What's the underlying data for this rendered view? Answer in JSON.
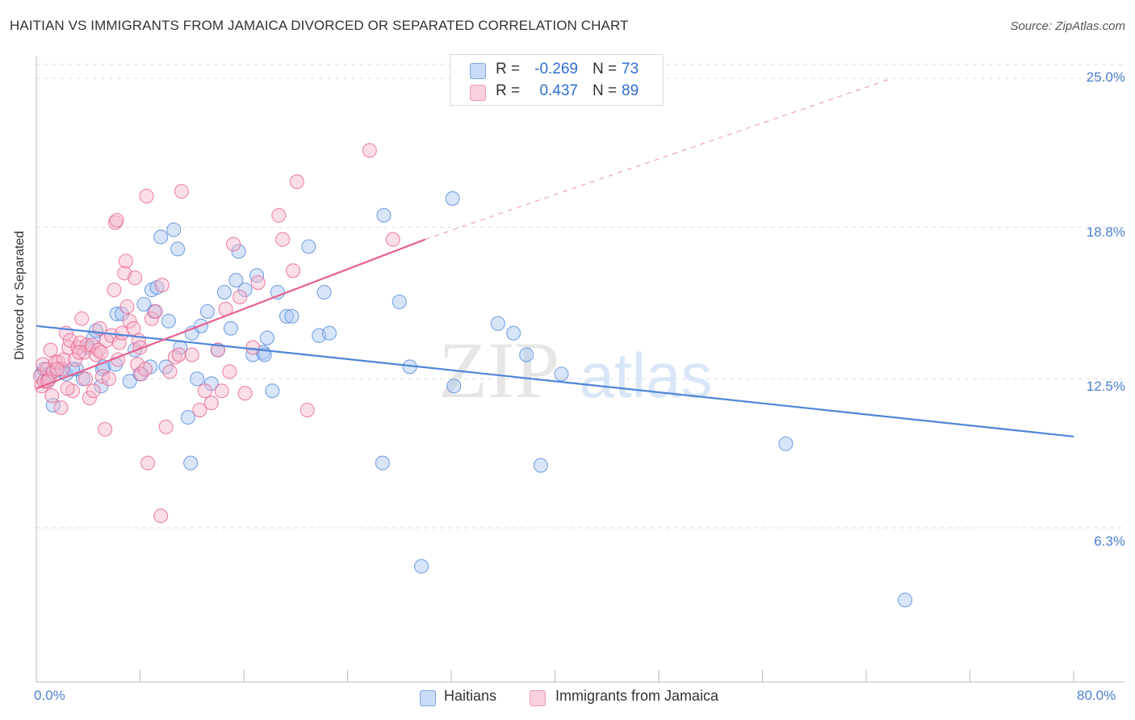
{
  "header": {
    "title": "HAITIAN VS IMMIGRANTS FROM JAMAICA DIVORCED OR SEPARATED CORRELATION CHART",
    "source": "Source: ZipAtlas.com"
  },
  "watermark": {
    "zip": "ZIP",
    "atlas": "atlas"
  },
  "legend": {
    "rows": [
      {
        "r_label": "R =",
        "r_value": "-0.269",
        "n_label": "N =",
        "n_value": "73",
        "color": "#a9c6f2"
      },
      {
        "r_label": "R =",
        "r_value": "0.437",
        "n_label": "N =",
        "n_value": "89",
        "color": "#f5b5ca"
      }
    ]
  },
  "bottom_legend": {
    "items": [
      {
        "label": "Haitians",
        "color": "#a9c6f2"
      },
      {
        "label": "Immigrants from Jamaica",
        "color": "#f5b5ca"
      }
    ]
  },
  "chart_data": {
    "type": "scatter",
    "title": "HAITIAN VS IMMIGRANTS FROM JAMAICA DIVORCED OR SEPARATED CORRELATION CHART",
    "ylabel": "Divorced or Separated",
    "xlabel": "",
    "xlim": [
      0,
      80
    ],
    "ylim": [
      0,
      26.2
    ],
    "x_tick_labels": [
      "0.0%",
      "80.0%"
    ],
    "y_ticks": [
      6.3,
      12.5,
      18.8,
      25.0
    ],
    "y_tick_labels": [
      "6.3%",
      "12.5%",
      "18.8%",
      "25.0%"
    ],
    "grid": true,
    "series": [
      {
        "name": "Haitians",
        "color": "#4f86d8",
        "fill": "#a9c6f2",
        "trend": {
          "x": [
            0,
            80
          ],
          "y": [
            14.7,
            10.1
          ],
          "dashed_extension": false
        },
        "points": [
          [
            0.4,
            12.7
          ],
          [
            0.6,
            12.9
          ],
          [
            0.8,
            12.4
          ],
          [
            1.0,
            12.7
          ],
          [
            1.3,
            11.4
          ],
          [
            2.0,
            12.8
          ],
          [
            2.3,
            12.7
          ],
          [
            3.1,
            12.9
          ],
          [
            3.6,
            12.5
          ],
          [
            4.0,
            13.8
          ],
          [
            4.4,
            14.2
          ],
          [
            4.6,
            14.5
          ],
          [
            5.1,
            12.9
          ],
          [
            5.2,
            13.0
          ],
          [
            6.1,
            13.1
          ],
          [
            6.2,
            15.2
          ],
          [
            6.6,
            15.2
          ],
          [
            7.2,
            12.4
          ],
          [
            7.6,
            13.7
          ],
          [
            8.0,
            12.7
          ],
          [
            8.3,
            15.6
          ],
          [
            8.8,
            13.0
          ],
          [
            8.9,
            16.2
          ],
          [
            9.3,
            16.3
          ],
          [
            9.6,
            18.4
          ],
          [
            10.0,
            13.0
          ],
          [
            10.2,
            14.9
          ],
          [
            10.6,
            18.7
          ],
          [
            10.9,
            17.9
          ],
          [
            11.1,
            13.8
          ],
          [
            11.7,
            10.9
          ],
          [
            12.0,
            14.4
          ],
          [
            12.4,
            12.5
          ],
          [
            12.7,
            14.7
          ],
          [
            13.2,
            15.3
          ],
          [
            13.5,
            12.3
          ],
          [
            14.0,
            13.7
          ],
          [
            14.5,
            16.1
          ],
          [
            15.0,
            14.6
          ],
          [
            15.4,
            16.6
          ],
          [
            15.6,
            17.8
          ],
          [
            16.1,
            16.2
          ],
          [
            16.7,
            13.5
          ],
          [
            17.0,
            16.8
          ],
          [
            17.5,
            13.6
          ],
          [
            17.8,
            14.2
          ],
          [
            18.2,
            12.0
          ],
          [
            18.6,
            16.1
          ],
          [
            19.3,
            15.1
          ],
          [
            19.7,
            15.1
          ],
          [
            21.0,
            18.0
          ],
          [
            21.8,
            14.3
          ],
          [
            22.2,
            16.1
          ],
          [
            22.6,
            14.4
          ],
          [
            26.7,
            9.0
          ],
          [
            26.8,
            19.3
          ],
          [
            28.0,
            15.7
          ],
          [
            28.8,
            13.0
          ],
          [
            29.7,
            4.7
          ],
          [
            32.1,
            20.0
          ],
          [
            32.2,
            12.2
          ],
          [
            35.6,
            14.8
          ],
          [
            36.8,
            14.4
          ],
          [
            37.8,
            13.5
          ],
          [
            38.9,
            8.9
          ],
          [
            40.5,
            12.7
          ],
          [
            57.8,
            9.8
          ],
          [
            67.0,
            3.3
          ],
          [
            11.9,
            9.0
          ],
          [
            17.6,
            13.5
          ],
          [
            5.0,
            12.2
          ],
          [
            2.8,
            12.9
          ],
          [
            9.1,
            15.3
          ]
        ]
      },
      {
        "name": "Immigrants from Jamaica",
        "color": "#e8608f",
        "fill": "#f5b5ca",
        "trend": {
          "x": [
            0,
            30
          ],
          "y": [
            12.1,
            18.3
          ],
          "dashed_extension": true,
          "dashed_to": [
            66,
            25.0
          ]
        },
        "points": [
          [
            0.3,
            12.6
          ],
          [
            0.4,
            12.2
          ],
          [
            0.5,
            13.1
          ],
          [
            0.6,
            12.4
          ],
          [
            0.8,
            12.9
          ],
          [
            1.0,
            12.5
          ],
          [
            1.1,
            13.7
          ],
          [
            1.3,
            12.8
          ],
          [
            1.5,
            13.2
          ],
          [
            1.7,
            13.2
          ],
          [
            1.9,
            11.3
          ],
          [
            2.0,
            12.9
          ],
          [
            2.1,
            13.3
          ],
          [
            2.3,
            14.4
          ],
          [
            2.5,
            13.8
          ],
          [
            2.6,
            14.1
          ],
          [
            2.8,
            12.0
          ],
          [
            3.0,
            13.3
          ],
          [
            3.2,
            13.8
          ],
          [
            3.4,
            14.0
          ],
          [
            3.5,
            15.0
          ],
          [
            3.7,
            13.6
          ],
          [
            3.9,
            13.9
          ],
          [
            4.1,
            11.7
          ],
          [
            4.3,
            13.9
          ],
          [
            4.4,
            12.0
          ],
          [
            4.6,
            13.5
          ],
          [
            4.8,
            13.7
          ],
          [
            5.0,
            13.6
          ],
          [
            5.1,
            12.6
          ],
          [
            5.3,
            10.4
          ],
          [
            5.4,
            14.1
          ],
          [
            5.6,
            12.5
          ],
          [
            5.8,
            14.3
          ],
          [
            6.0,
            16.2
          ],
          [
            6.1,
            19.0
          ],
          [
            6.2,
            19.1
          ],
          [
            6.4,
            14.0
          ],
          [
            6.6,
            14.4
          ],
          [
            6.8,
            16.9
          ],
          [
            6.9,
            17.4
          ],
          [
            7.0,
            15.5
          ],
          [
            7.2,
            14.9
          ],
          [
            7.6,
            16.7
          ],
          [
            7.8,
            13.1
          ],
          [
            7.9,
            14.1
          ],
          [
            8.1,
            12.7
          ],
          [
            8.4,
            12.9
          ],
          [
            8.5,
            20.1
          ],
          [
            8.6,
            9.0
          ],
          [
            8.9,
            15.0
          ],
          [
            9.2,
            15.3
          ],
          [
            9.6,
            6.8
          ],
          [
            9.7,
            16.4
          ],
          [
            10.0,
            10.5
          ],
          [
            10.3,
            12.8
          ],
          [
            10.7,
            13.4
          ],
          [
            11.0,
            13.5
          ],
          [
            11.2,
            20.3
          ],
          [
            12.0,
            13.5
          ],
          [
            12.6,
            11.2
          ],
          [
            13.0,
            12.0
          ],
          [
            13.5,
            11.5
          ],
          [
            14.0,
            13.7
          ],
          [
            14.3,
            12.0
          ],
          [
            14.6,
            15.4
          ],
          [
            14.9,
            12.8
          ],
          [
            15.2,
            18.1
          ],
          [
            15.7,
            15.9
          ],
          [
            16.1,
            11.9
          ],
          [
            16.7,
            13.8
          ],
          [
            17.1,
            16.5
          ],
          [
            18.7,
            19.3
          ],
          [
            19.0,
            18.3
          ],
          [
            19.8,
            17.0
          ],
          [
            20.1,
            20.7
          ],
          [
            20.9,
            11.2
          ],
          [
            25.7,
            22.0
          ],
          [
            27.5,
            18.3
          ],
          [
            1.2,
            11.8
          ],
          [
            2.4,
            12.1
          ],
          [
            3.3,
            13.6
          ],
          [
            4.9,
            14.6
          ],
          [
            6.3,
            13.3
          ],
          [
            7.5,
            14.6
          ],
          [
            8.0,
            13.8
          ],
          [
            0.9,
            12.4
          ],
          [
            1.6,
            12.9
          ],
          [
            3.8,
            12.5
          ]
        ]
      }
    ]
  }
}
